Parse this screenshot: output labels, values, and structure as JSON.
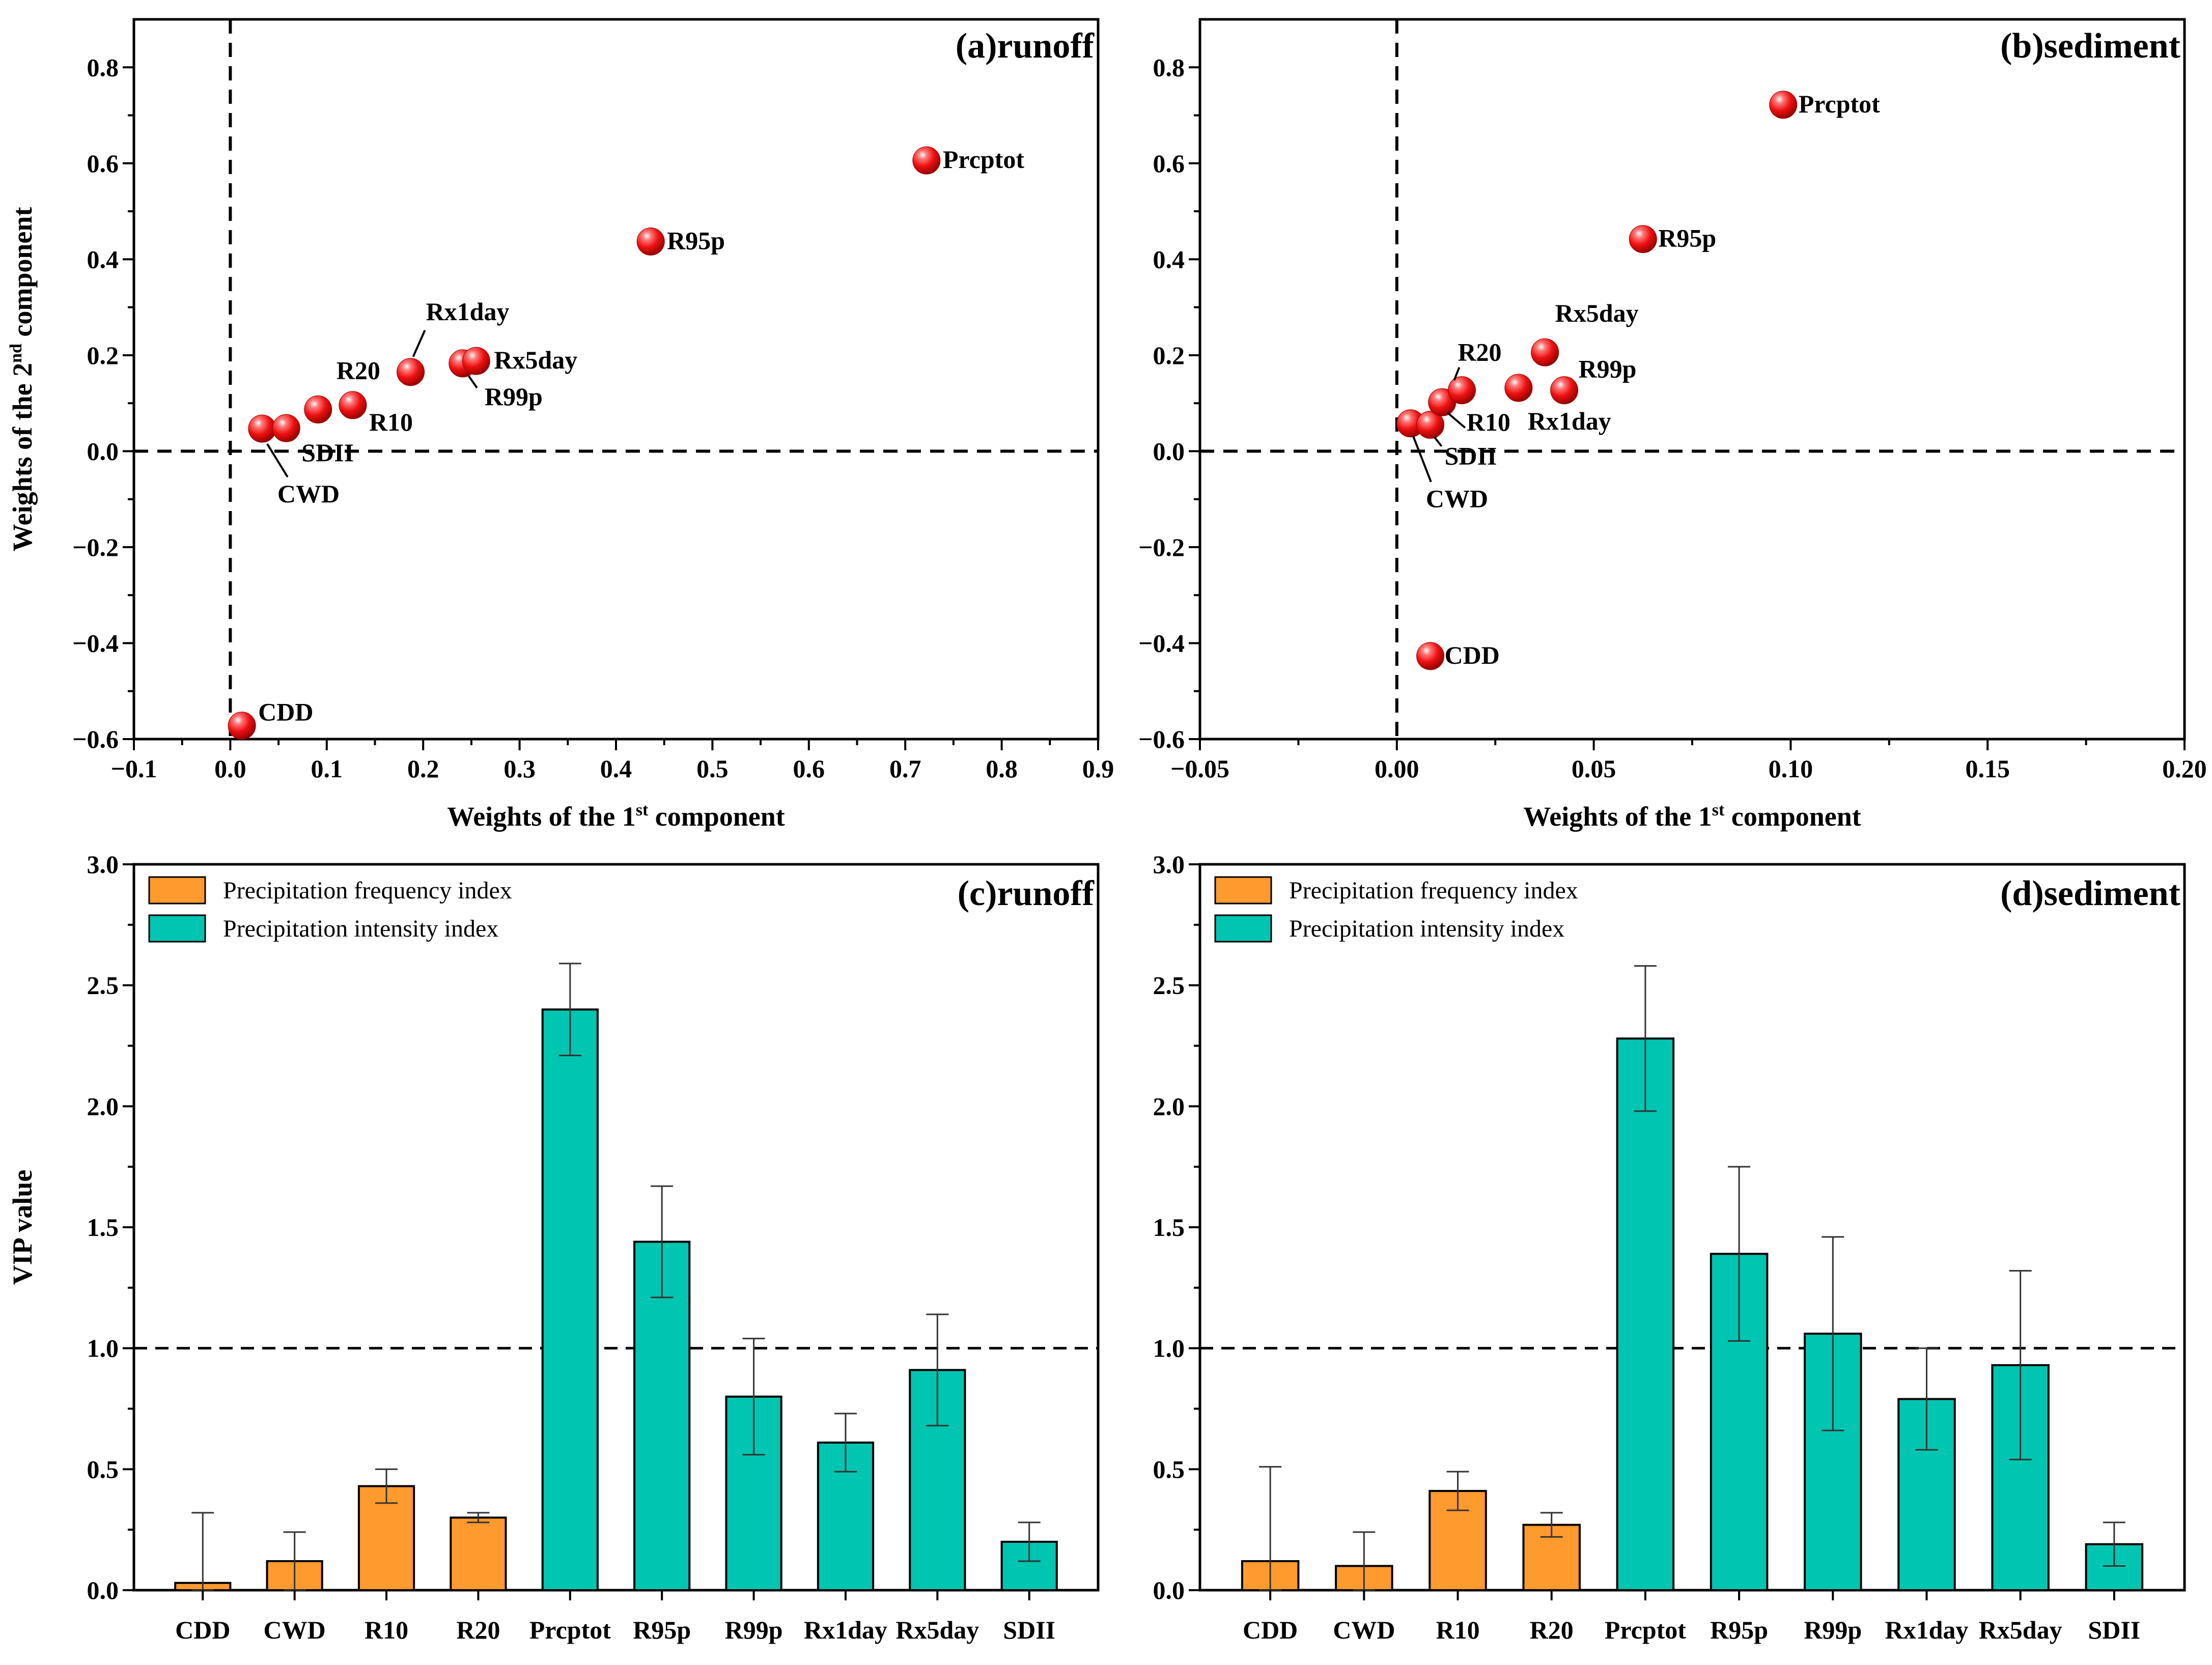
{
  "colors": {
    "frequency": "#ff9a2e",
    "intensity": "#00c5b0",
    "point": "#ee1111",
    "axis": "#000000"
  },
  "chart_data": [
    {
      "id": "a",
      "type": "scatter",
      "title": "(a)runoff",
      "xlabel": "Weights of the 1st component",
      "ylabel": "Weights of the 2nd component",
      "xlim": [
        -0.1,
        0.9
      ],
      "ylim": [
        -0.6,
        0.9
      ],
      "xticks": [
        -0.1,
        0.0,
        0.1,
        0.2,
        0.3,
        0.4,
        0.5,
        0.6,
        0.7,
        0.8,
        0.9
      ],
      "xtick_labels": [
        "−0.1",
        "0.0",
        "0.1",
        "0.2",
        "0.3",
        "0.4",
        "0.5",
        "0.6",
        "0.7",
        "0.8",
        "0.9"
      ],
      "yticks": [
        -0.6,
        -0.4,
        -0.2,
        0.0,
        0.2,
        0.4,
        0.6,
        0.8
      ],
      "ytick_labels": [
        "−0.6",
        "−0.4",
        "−0.2",
        "0.0",
        "0.2",
        "0.4",
        "0.6",
        "0.8"
      ],
      "reference_lines": {
        "x": 0,
        "y": 0
      },
      "points": [
        {
          "label": "CDD",
          "x": 0.012,
          "y": -0.572
        },
        {
          "label": "CWD",
          "x": 0.033,
          "y": 0.047
        },
        {
          "label": "SDII",
          "x": 0.058,
          "y": 0.048
        },
        {
          "label": "R10",
          "x": 0.127,
          "y": 0.096
        },
        {
          "label": "R20",
          "x": 0.091,
          "y": 0.087
        },
        {
          "label": "Prcptot",
          "x": 0.722,
          "y": 0.606
        },
        {
          "label": "R95p",
          "x": 0.436,
          "y": 0.437
        },
        {
          "label": "R99p",
          "x": 0.241,
          "y": 0.183
        },
        {
          "label": "Rx1day",
          "x": 0.187,
          "y": 0.165
        },
        {
          "label": "Rx5day",
          "x": 0.255,
          "y": 0.188
        }
      ]
    },
    {
      "id": "b",
      "type": "scatter",
      "title": "(b)sediment",
      "xlabel": "Weights of the 1st component",
      "ylabel": "",
      "xlim": [
        -0.05,
        0.2
      ],
      "ylim": [
        -0.6,
        0.9
      ],
      "xticks": [
        -0.05,
        0.0,
        0.05,
        0.1,
        0.15,
        0.2
      ],
      "xtick_labels": [
        "−0.05",
        "0.00",
        "0.05",
        "0.10",
        "0.15",
        "0.20"
      ],
      "yticks": [
        -0.6,
        -0.4,
        -0.2,
        0.0,
        0.2,
        0.4,
        0.6,
        0.8
      ],
      "ytick_labels": [
        "−0.6",
        "−0.4",
        "−0.2",
        "0.0",
        "0.2",
        "0.4",
        "0.6",
        "0.8"
      ],
      "reference_lines": {
        "x": 0,
        "y": 0
      },
      "points": [
        {
          "label": "CDD",
          "x": 0.0085,
          "y": -0.427
        },
        {
          "label": "CWD",
          "x": 0.0035,
          "y": 0.058
        },
        {
          "label": "SDII",
          "x": 0.0085,
          "y": 0.055
        },
        {
          "label": "R10",
          "x": 0.0115,
          "y": 0.102
        },
        {
          "label": "R20",
          "x": 0.0165,
          "y": 0.127
        },
        {
          "label": "Prcptot",
          "x": 0.0981,
          "y": 0.722
        },
        {
          "label": "R95p",
          "x": 0.0625,
          "y": 0.442
        },
        {
          "label": "R99p",
          "x": 0.0425,
          "y": 0.127
        },
        {
          "label": "Rx1day",
          "x": 0.0309,
          "y": 0.132
        },
        {
          "label": "Rx5day",
          "x": 0.0376,
          "y": 0.206
        }
      ]
    },
    {
      "id": "c",
      "type": "bar",
      "title": "(c)runoff",
      "xlabel": "",
      "ylabel": "VIP value",
      "ylim": [
        0,
        3.0
      ],
      "yticks": [
        0,
        0.5,
        1.0,
        1.5,
        2.0,
        2.5,
        3.0
      ],
      "ytick_labels": [
        "0.0",
        "0.5",
        "1.0",
        "1.5",
        "2.0",
        "2.5",
        "3.0"
      ],
      "threshold": 1.0,
      "categories": [
        "CDD",
        "CWD",
        "R10",
        "R20",
        "Prcptot",
        "R95p",
        "R99p",
        "Rx1day",
        "Rx5day",
        "SDII"
      ],
      "groups": [
        "frequency",
        "frequency",
        "frequency",
        "frequency",
        "intensity",
        "intensity",
        "intensity",
        "intensity",
        "intensity",
        "intensity"
      ],
      "values": [
        0.03,
        0.12,
        0.43,
        0.3,
        2.4,
        1.44,
        0.8,
        0.61,
        0.91,
        0.2
      ],
      "errors": [
        0.29,
        0.12,
        0.07,
        0.02,
        0.19,
        0.23,
        0.24,
        0.12,
        0.23,
        0.08
      ],
      "legend": [
        "Precipitation frequency index",
        "Precipitation intensity index"
      ]
    },
    {
      "id": "d",
      "type": "bar",
      "title": "(d)sediment",
      "xlabel": "",
      "ylabel": "",
      "ylim": [
        0,
        3.0
      ],
      "yticks": [
        0,
        0.5,
        1.0,
        1.5,
        2.0,
        2.5,
        3.0
      ],
      "ytick_labels": [
        "0.0",
        "0.5",
        "1.0",
        "1.5",
        "2.0",
        "2.5",
        "3.0"
      ],
      "threshold": 1.0,
      "categories": [
        "CDD",
        "CWD",
        "R10",
        "R20",
        "Prcptot",
        "R95p",
        "R99p",
        "Rx1day",
        "Rx5day",
        "SDII"
      ],
      "groups": [
        "frequency",
        "frequency",
        "frequency",
        "frequency",
        "intensity",
        "intensity",
        "intensity",
        "intensity",
        "intensity",
        "intensity"
      ],
      "values": [
        0.12,
        0.1,
        0.41,
        0.27,
        2.28,
        1.39,
        1.06,
        0.79,
        0.93,
        0.19
      ],
      "errors": [
        0.39,
        0.14,
        0.08,
        0.05,
        0.3,
        0.36,
        0.4,
        0.21,
        0.39,
        0.09
      ],
      "legend": [
        "Precipitation frequency index",
        "Precipitation intensity index"
      ]
    }
  ]
}
